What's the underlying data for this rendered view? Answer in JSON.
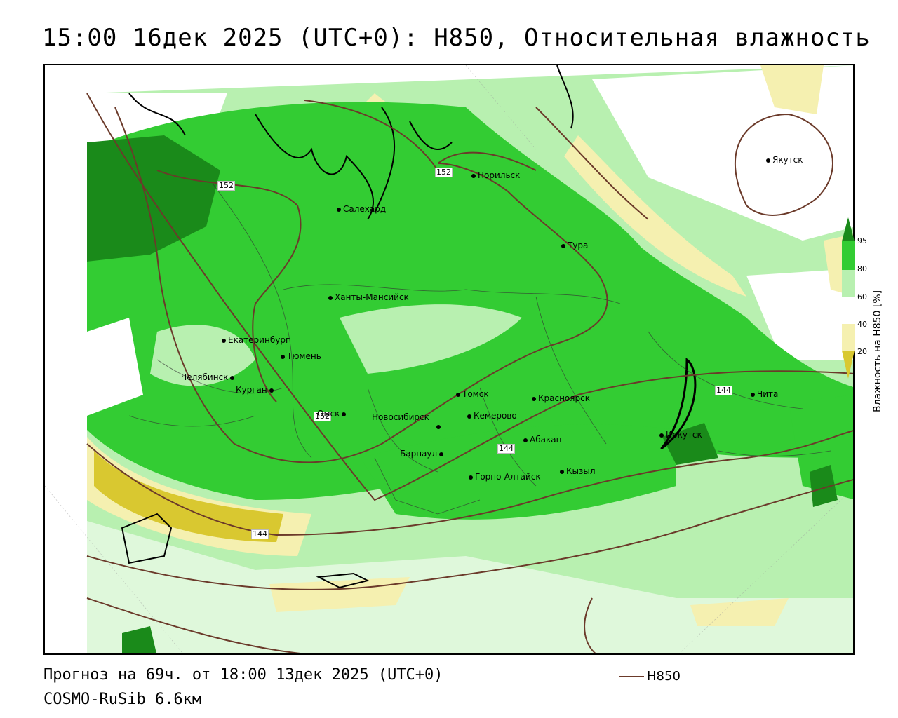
{
  "header": {
    "title": "15:00 16дек 2025 (UTC+0): H850, Относительная влажность"
  },
  "map": {
    "cities": [
      {
        "name": "Норильск"
      },
      {
        "name": "Якутск"
      },
      {
        "name": "Салехард"
      },
      {
        "name": "Тура"
      },
      {
        "name": "Ханты-Мансийск"
      },
      {
        "name": "Екатеринбург"
      },
      {
        "name": "Тюмень"
      },
      {
        "name": "Челябинск"
      },
      {
        "name": "Курган"
      },
      {
        "name": "Омск"
      },
      {
        "name": "Томск"
      },
      {
        "name": "Красноярск"
      },
      {
        "name": "Новосибирск"
      },
      {
        "name": "Кемерово"
      },
      {
        "name": "Чита"
      },
      {
        "name": "Абакан"
      },
      {
        "name": "Иркутск"
      },
      {
        "name": "Барнаул"
      },
      {
        "name": "Кызыл"
      },
      {
        "name": "Горно-Алтайск"
      }
    ],
    "contour_labels": [
      "152",
      "152",
      "152",
      "144",
      "144",
      "144"
    ]
  },
  "legend": {
    "title": "Влажность на H850 [%]",
    "ticks": [
      "95",
      "80",
      "60",
      "40",
      "20"
    ],
    "colors": {
      "above_95": "#1a8a1a",
      "80_95": "#33cc33",
      "60_80": "#b8f0b0",
      "40_60": "#ffffff",
      "20_40": "#f5f0b0",
      "below_20": "#d9c830"
    }
  },
  "footer": {
    "forecast": "Прогноз на 69ч. от 18:00 13дек 2025 (UTC+0)",
    "model": "COSMO-RuSib 6.6км",
    "line_legend": "H850",
    "line_color": "#6b3a2a"
  }
}
